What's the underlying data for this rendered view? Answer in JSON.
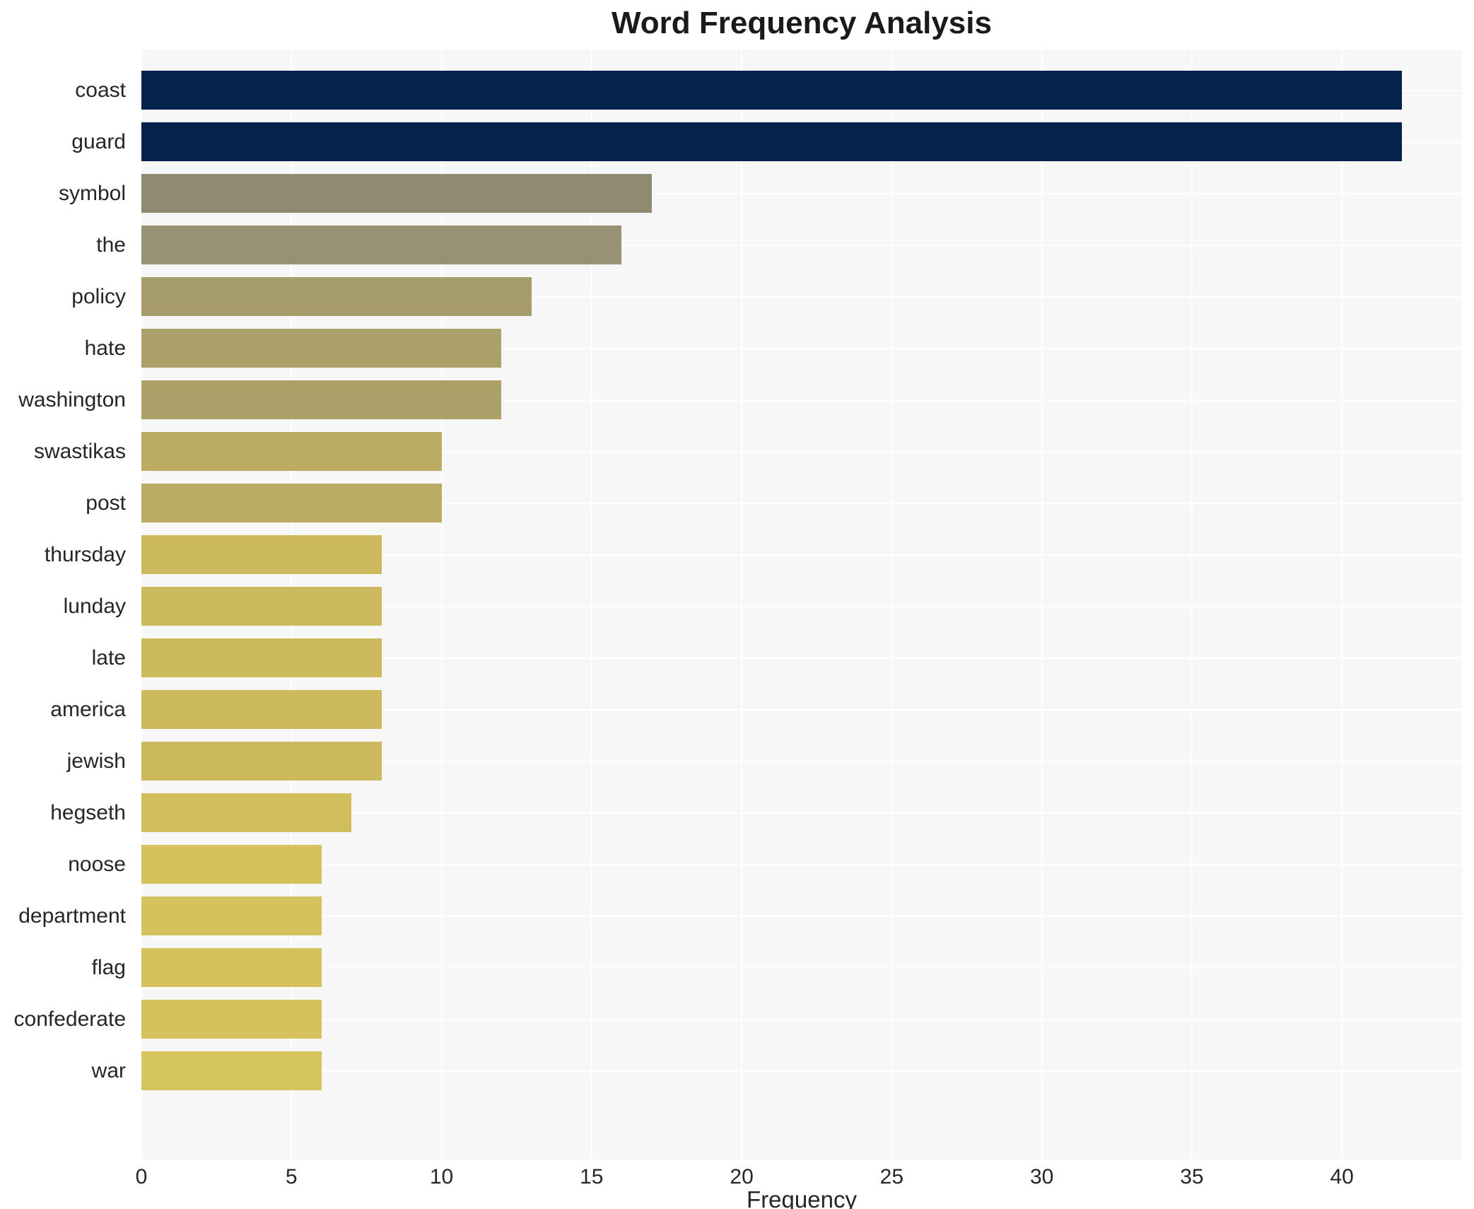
{
  "chart_data": {
    "type": "bar",
    "orientation": "horizontal",
    "title": "Word Frequency Analysis",
    "xlabel": "Frequency",
    "ylabel": "",
    "categories": [
      "coast",
      "guard",
      "symbol",
      "the",
      "policy",
      "hate",
      "washington",
      "swastikas",
      "post",
      "thursday",
      "lunday",
      "late",
      "america",
      "jewish",
      "hegseth",
      "noose",
      "department",
      "flag",
      "confederate",
      "war"
    ],
    "values": [
      42,
      42,
      17,
      16,
      13,
      12,
      12,
      10,
      10,
      8,
      8,
      8,
      8,
      8,
      7,
      6,
      6,
      6,
      6,
      6
    ],
    "bar_colors": [
      "#04224c",
      "#04224c",
      "#8f8a70",
      "#989173",
      "#a69d6b",
      "#aba168",
      "#aba168",
      "#bcab62",
      "#bcab62",
      "#cdb95e",
      "#cdb95e",
      "#cdb95e",
      "#cdb95e",
      "#cdb95e",
      "#d2bd5d",
      "#d5c25c",
      "#d5c25c",
      "#d5c25c",
      "#d5c25c",
      "#d6c45c"
    ],
    "xticks": [
      0,
      5,
      10,
      15,
      20,
      25,
      30,
      35,
      40
    ],
    "xlim": [
      0,
      44
    ],
    "grid": true,
    "legend": false,
    "colors": {
      "plot_background": "#f7f7f8",
      "figure_background": "#ffffff",
      "gridline": "#ffffff",
      "tick_text": "#262626",
      "title_text": "#1a1a1a",
      "color_ramp_low": "#d6c45c",
      "color_ramp_high": "#04224c"
    }
  }
}
